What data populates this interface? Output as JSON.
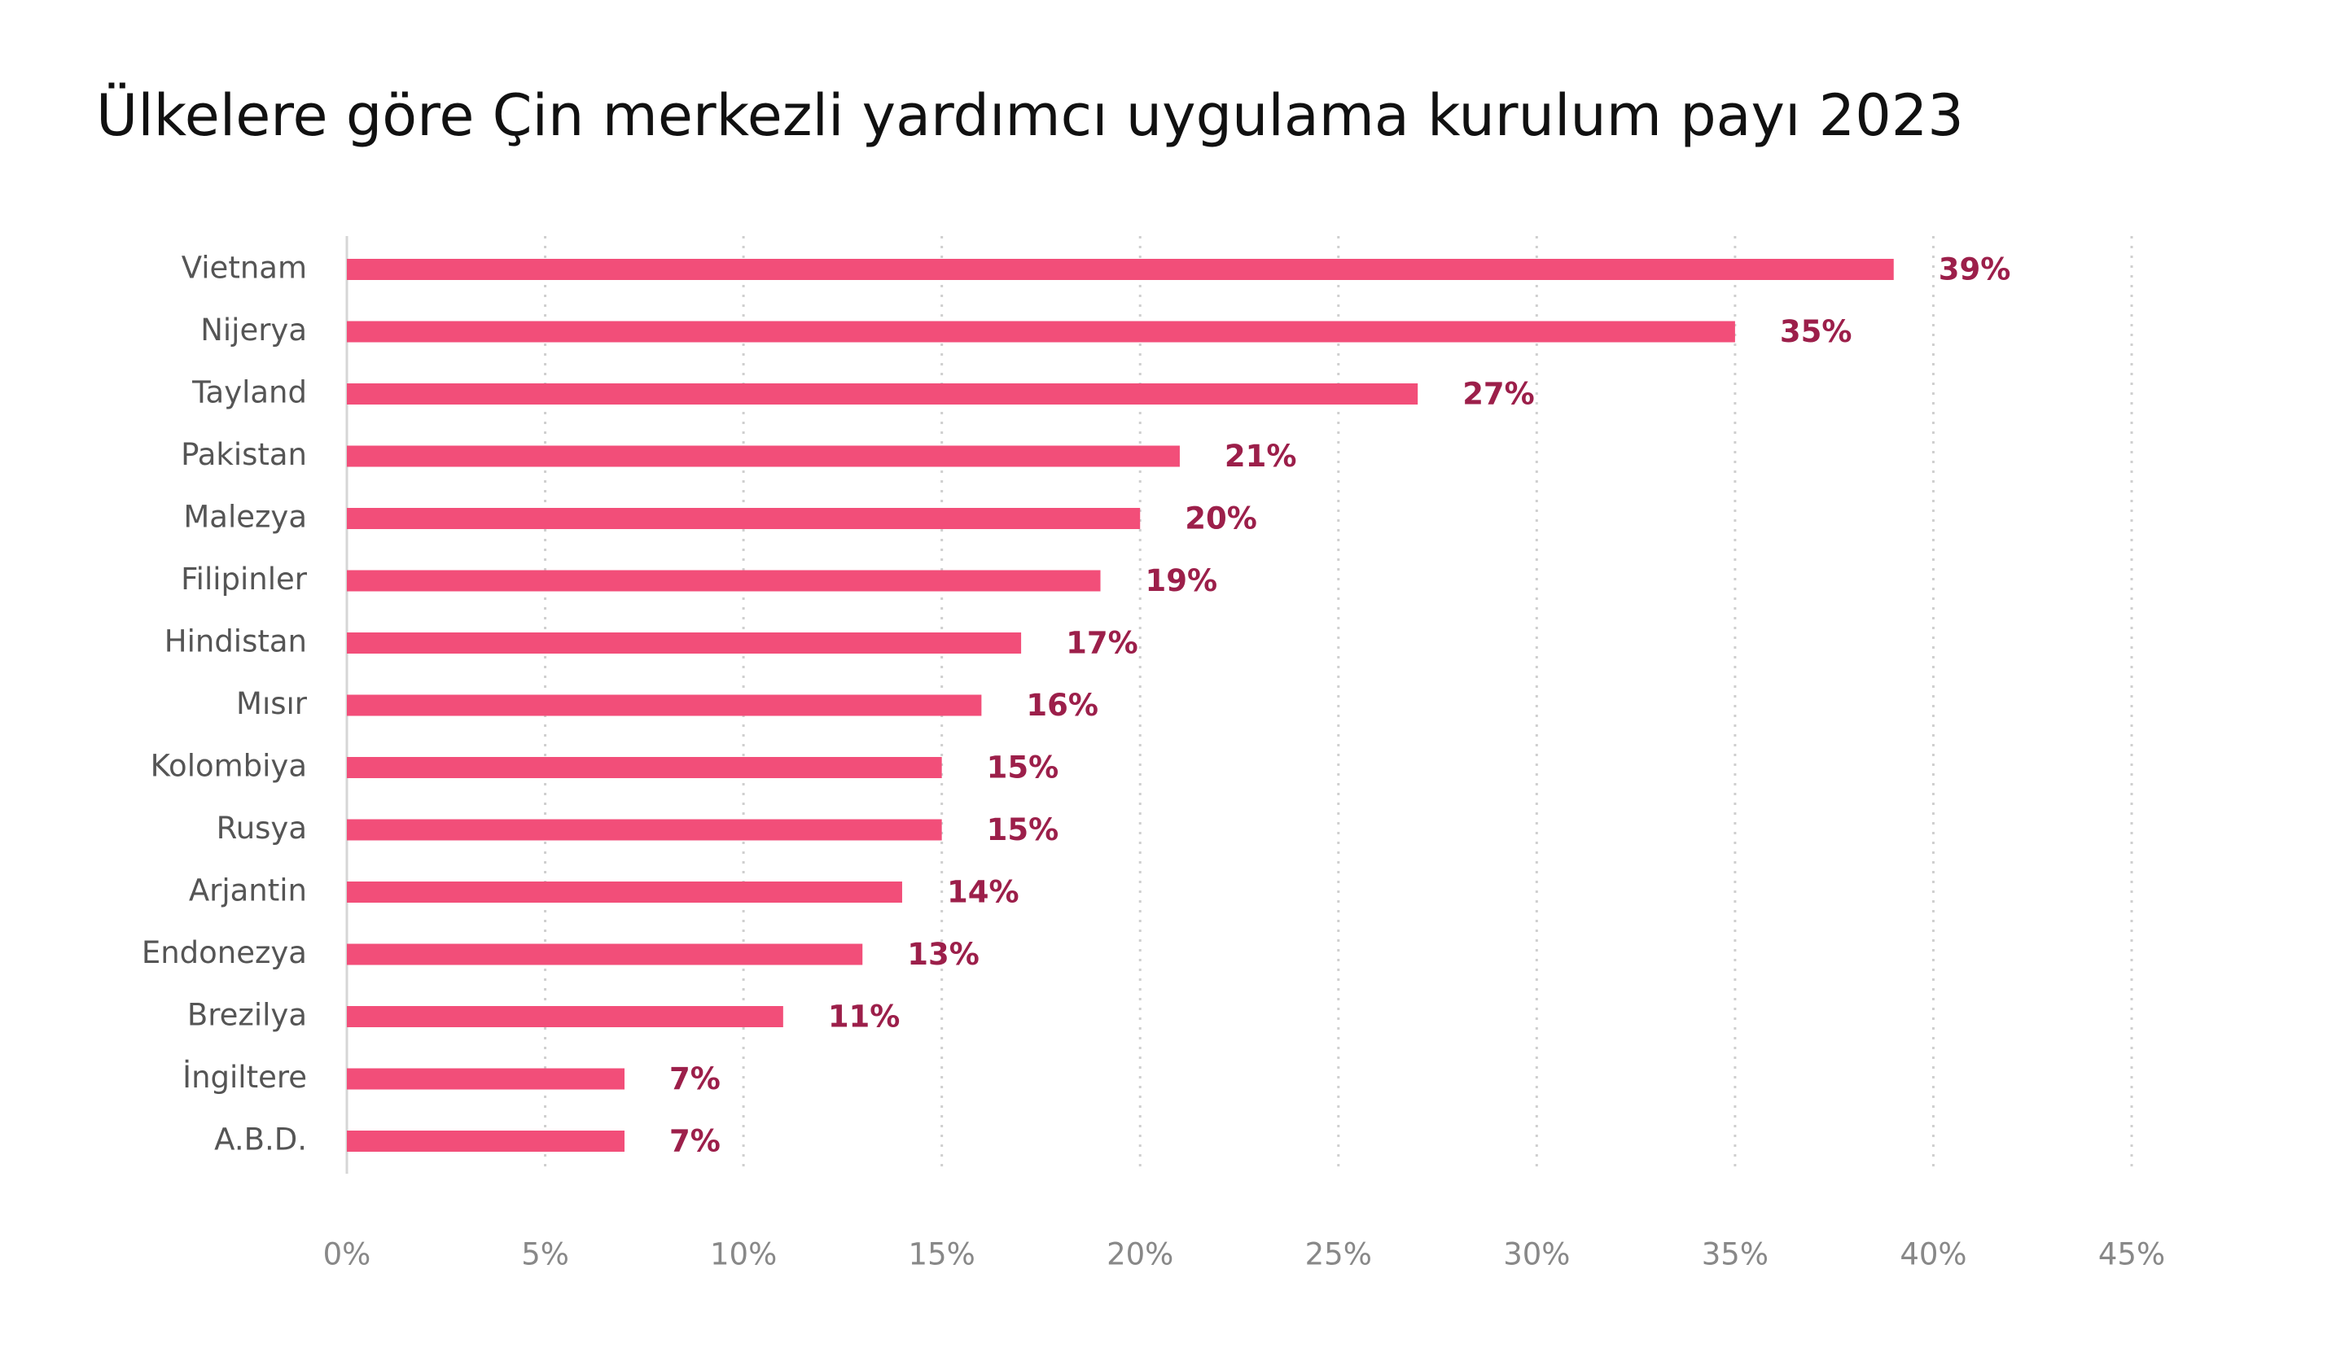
{
  "chart_data": {
    "type": "bar",
    "orientation": "horizontal",
    "title": "Ülkelere göre Çin merkezli yardımcı uygulama kurulum payı 2023",
    "categories": [
      "Vietnam",
      "Nijerya",
      "Tayland",
      "Pakistan",
      "Malezya",
      "Filipinler",
      "Hindistan",
      "Mısır",
      "Kolombiya",
      "Rusya",
      "Arjantin",
      "Endonezya",
      "Brezilya",
      "İngiltere",
      "A.B.D."
    ],
    "values": [
      39,
      35,
      27,
      21,
      20,
      19,
      17,
      16,
      15,
      15,
      14,
      13,
      11,
      7,
      7
    ],
    "value_labels": [
      "39%",
      "35%",
      "27%",
      "21%",
      "20%",
      "19%",
      "17%",
      "16%",
      "15%",
      "15%",
      "14%",
      "13%",
      "11%",
      "7%",
      "7%"
    ],
    "color": "#f24e79",
    "xlim": [
      0,
      45
    ],
    "xticks": [
      {
        "value": 0,
        "label": "0%"
      },
      {
        "value": 5,
        "label": "5%"
      },
      {
        "value": 10,
        "label": "10%"
      },
      {
        "value": 15,
        "label": "15%"
      },
      {
        "value": 20,
        "label": "20%"
      },
      {
        "value": 25,
        "label": "25%"
      },
      {
        "value": 30,
        "label": "30%"
      },
      {
        "value": 35,
        "label": "35%"
      },
      {
        "value": 40,
        "label": "40%"
      },
      {
        "value": 45,
        "label": "45%"
      }
    ],
    "grid": true
  }
}
